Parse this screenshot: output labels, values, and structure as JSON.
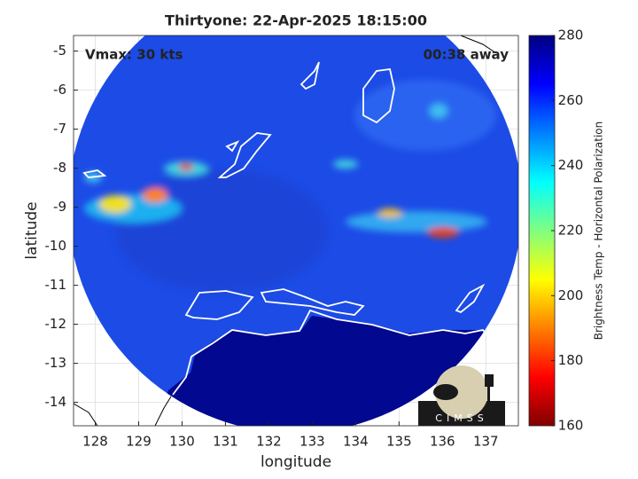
{
  "chart_data": {
    "type": "map",
    "title": "Thirtyone: 22-Apr-2025 18:15:00",
    "annotations": [
      "Vmax: 30 kts",
      "00:38 away"
    ],
    "x_label": "longitude",
    "y_label": "latitude",
    "xlim": [
      127.5,
      137.75
    ],
    "xticks": [
      128,
      129,
      130,
      131,
      132,
      133,
      134,
      135,
      136,
      137
    ],
    "ylim": [
      -14.6,
      -4.6
    ],
    "yticks": [
      -5,
      -6,
      -7,
      -8,
      -9,
      -10,
      -11,
      -12,
      -13,
      -14
    ],
    "grid": true,
    "colorbar": {
      "label": "Brightness Temp - Horizontal Polarization",
      "lim": [
        160,
        280
      ],
      "ticks": [
        160,
        180,
        200,
        220,
        240,
        260,
        280
      ],
      "colormap": "jet"
    },
    "logo": "CIMSS"
  }
}
